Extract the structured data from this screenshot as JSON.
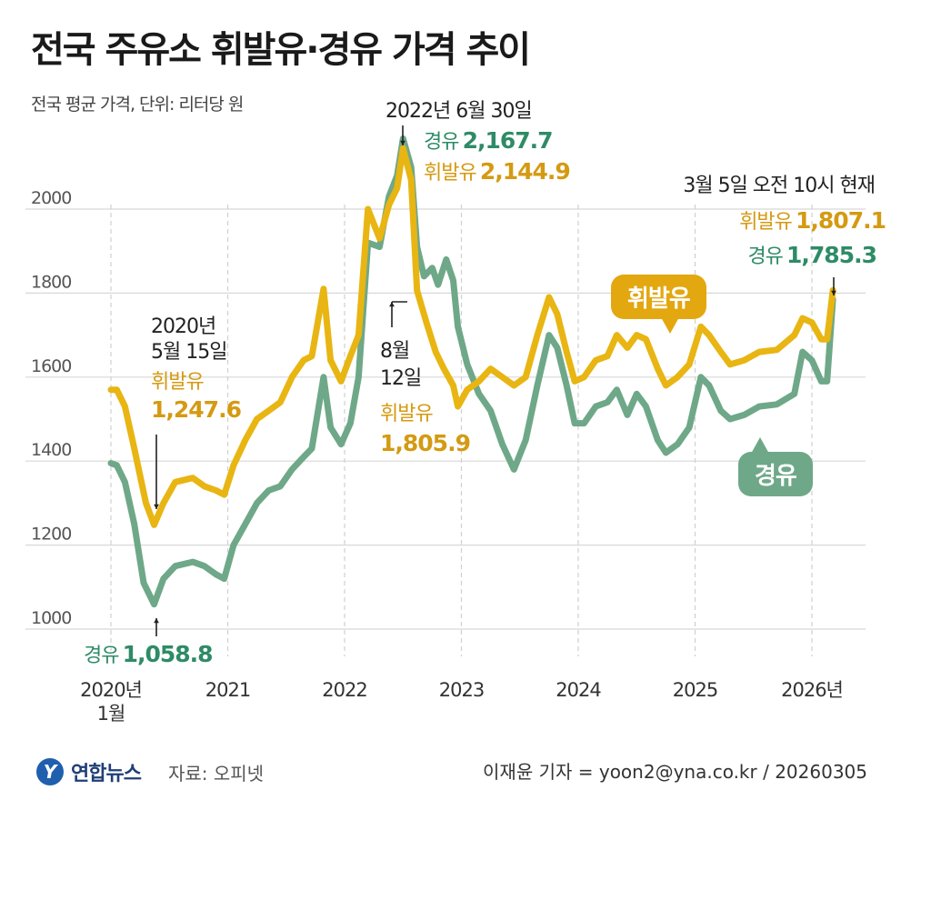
{
  "header": {
    "title": "전국 주유소 휘발유·경유 가격 추이",
    "subtitle": "전국 평균 가격, 단위: 리터당 원"
  },
  "chart_data": {
    "type": "line",
    "title": "전국 주유소 휘발유·경유 가격 추이",
    "unit": "원/리터",
    "y_ticks": [
      1000,
      1200,
      1400,
      1600,
      1800,
      2000
    ],
    "ylim": [
      930,
      2200
    ],
    "x_ticks": [
      "2020년\n1월",
      "2021",
      "2022",
      "2023",
      "2024",
      "2025",
      "2026년"
    ],
    "xlim": [
      2020.0,
      2026.2
    ],
    "series": [
      {
        "name": "휘발유",
        "color": "#e8b512",
        "points": [
          [
            2020.0,
            1570
          ],
          [
            2020.05,
            1570
          ],
          [
            2020.12,
            1530
          ],
          [
            2020.2,
            1430
          ],
          [
            2020.3,
            1300
          ],
          [
            2020.37,
            1248
          ],
          [
            2020.45,
            1300
          ],
          [
            2020.55,
            1350
          ],
          [
            2020.7,
            1360
          ],
          [
            2020.8,
            1340
          ],
          [
            2020.9,
            1330
          ],
          [
            2020.97,
            1320
          ],
          [
            2021.05,
            1390
          ],
          [
            2021.15,
            1450
          ],
          [
            2021.25,
            1500
          ],
          [
            2021.35,
            1520
          ],
          [
            2021.45,
            1540
          ],
          [
            2021.55,
            1600
          ],
          [
            2021.65,
            1640
          ],
          [
            2021.72,
            1650
          ],
          [
            2021.82,
            1810
          ],
          [
            2021.88,
            1640
          ],
          [
            2021.97,
            1590
          ],
          [
            2022.05,
            1650
          ],
          [
            2022.12,
            1700
          ],
          [
            2022.2,
            2000
          ],
          [
            2022.3,
            1930
          ],
          [
            2022.38,
            2010
          ],
          [
            2022.45,
            2050
          ],
          [
            2022.5,
            2145
          ],
          [
            2022.57,
            2070
          ],
          [
            2022.62,
            1806
          ],
          [
            2022.7,
            1730
          ],
          [
            2022.78,
            1660
          ],
          [
            2022.85,
            1620
          ],
          [
            2022.93,
            1580
          ],
          [
            2022.97,
            1530
          ],
          [
            2023.05,
            1570
          ],
          [
            2023.15,
            1590
          ],
          [
            2023.25,
            1620
          ],
          [
            2023.35,
            1600
          ],
          [
            2023.45,
            1580
          ],
          [
            2023.55,
            1600
          ],
          [
            2023.65,
            1700
          ],
          [
            2023.75,
            1790
          ],
          [
            2023.82,
            1750
          ],
          [
            2023.9,
            1660
          ],
          [
            2023.97,
            1590
          ],
          [
            2024.05,
            1600
          ],
          [
            2024.15,
            1640
          ],
          [
            2024.25,
            1650
          ],
          [
            2024.33,
            1700
          ],
          [
            2024.42,
            1670
          ],
          [
            2024.5,
            1700
          ],
          [
            2024.58,
            1690
          ],
          [
            2024.68,
            1620
          ],
          [
            2024.75,
            1580
          ],
          [
            2024.85,
            1600
          ],
          [
            2024.95,
            1630
          ],
          [
            2025.05,
            1720
          ],
          [
            2025.12,
            1700
          ],
          [
            2025.22,
            1660
          ],
          [
            2025.3,
            1630
          ],
          [
            2025.42,
            1640
          ],
          [
            2025.55,
            1660
          ],
          [
            2025.7,
            1665
          ],
          [
            2025.85,
            1700
          ],
          [
            2025.92,
            1740
          ],
          [
            2026.0,
            1730
          ],
          [
            2026.08,
            1690
          ],
          [
            2026.13,
            1690
          ],
          [
            2026.18,
            1807
          ]
        ]
      },
      {
        "name": "경유",
        "color": "#6ea888",
        "points": [
          [
            2020.0,
            1395
          ],
          [
            2020.05,
            1390
          ],
          [
            2020.12,
            1350
          ],
          [
            2020.2,
            1250
          ],
          [
            2020.28,
            1110
          ],
          [
            2020.37,
            1059
          ],
          [
            2020.45,
            1120
          ],
          [
            2020.55,
            1150
          ],
          [
            2020.7,
            1160
          ],
          [
            2020.8,
            1150
          ],
          [
            2020.9,
            1130
          ],
          [
            2020.97,
            1120
          ],
          [
            2021.05,
            1200
          ],
          [
            2021.15,
            1250
          ],
          [
            2021.25,
            1300
          ],
          [
            2021.35,
            1330
          ],
          [
            2021.45,
            1340
          ],
          [
            2021.55,
            1380
          ],
          [
            2021.65,
            1410
          ],
          [
            2021.72,
            1430
          ],
          [
            2021.82,
            1600
          ],
          [
            2021.88,
            1480
          ],
          [
            2021.97,
            1440
          ],
          [
            2022.05,
            1490
          ],
          [
            2022.12,
            1600
          ],
          [
            2022.2,
            1920
          ],
          [
            2022.3,
            1910
          ],
          [
            2022.38,
            2030
          ],
          [
            2022.45,
            2080
          ],
          [
            2022.5,
            2168
          ],
          [
            2022.57,
            2100
          ],
          [
            2022.62,
            1910
          ],
          [
            2022.68,
            1840
          ],
          [
            2022.75,
            1860
          ],
          [
            2022.8,
            1820
          ],
          [
            2022.87,
            1880
          ],
          [
            2022.93,
            1830
          ],
          [
            2022.97,
            1720
          ],
          [
            2023.05,
            1630
          ],
          [
            2023.15,
            1560
          ],
          [
            2023.25,
            1520
          ],
          [
            2023.35,
            1440
          ],
          [
            2023.45,
            1380
          ],
          [
            2023.55,
            1450
          ],
          [
            2023.65,
            1580
          ],
          [
            2023.75,
            1700
          ],
          [
            2023.82,
            1670
          ],
          [
            2023.9,
            1580
          ],
          [
            2023.97,
            1490
          ],
          [
            2024.05,
            1490
          ],
          [
            2024.15,
            1530
          ],
          [
            2024.25,
            1540
          ],
          [
            2024.33,
            1570
          ],
          [
            2024.42,
            1510
          ],
          [
            2024.5,
            1560
          ],
          [
            2024.58,
            1530
          ],
          [
            2024.68,
            1450
          ],
          [
            2024.75,
            1420
          ],
          [
            2024.85,
            1440
          ],
          [
            2024.95,
            1480
          ],
          [
            2025.05,
            1600
          ],
          [
            2025.12,
            1580
          ],
          [
            2025.22,
            1520
          ],
          [
            2025.3,
            1500
          ],
          [
            2025.42,
            1510
          ],
          [
            2025.55,
            1530
          ],
          [
            2025.7,
            1535
          ],
          [
            2025.85,
            1560
          ],
          [
            2025.92,
            1660
          ],
          [
            2026.0,
            1640
          ],
          [
            2026.08,
            1590
          ],
          [
            2026.13,
            1590
          ],
          [
            2026.18,
            1785
          ]
        ]
      }
    ],
    "legend": [
      "휘발유",
      "경유"
    ]
  },
  "annotations": {
    "low_date": "2020년\n5월 15일",
    "low_gas_label": "휘발유",
    "low_gas_value": "1,247.6",
    "low_diesel_label": "경유",
    "low_diesel_value": "1,058.8",
    "peak_date": "2022년 6월 30일",
    "peak_diesel_label": "경유",
    "peak_diesel_value": "2,167.7",
    "peak_gas_label": "휘발유",
    "peak_gas_value": "2,144.9",
    "aug_date": "8월\n12일",
    "aug_gas_label": "휘발유",
    "aug_gas_value": "1,805.9",
    "now_date": "3월 5일 오전 10시 현재",
    "now_gas_label": "휘발유",
    "now_gas_value": "1,807.1",
    "now_diesel_label": "경유",
    "now_diesel_value": "1,785.3"
  },
  "legend_bubbles": {
    "gasoline": "휘발유",
    "diesel": "경유"
  },
  "footer": {
    "logo_mark": "Y",
    "brand": "연합뉴스",
    "source": "자료: 오피넷",
    "credit": "이재윤 기자 = yoon2@yna.co.kr / 20260305"
  }
}
